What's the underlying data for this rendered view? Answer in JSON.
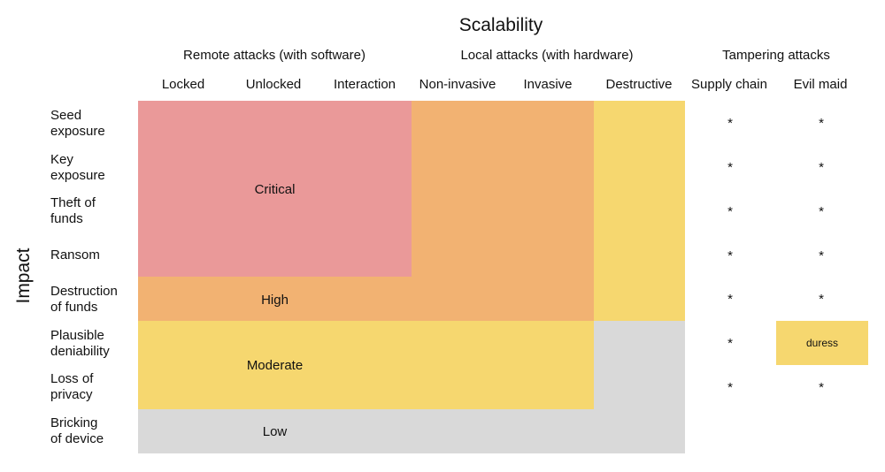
{
  "title": "Scalability",
  "y_label": "Impact",
  "groups": [
    "Remote attacks (with software)",
    "Local attacks (with hardware)",
    "Tampering attacks"
  ],
  "columns": [
    "Locked",
    "Unlocked",
    "Interaction",
    "Non-invasive",
    "Invasive",
    "Destructive",
    "Supply chain",
    "Evil maid"
  ],
  "rows": [
    "Seed exposure",
    "Key exposure",
    "Theft of funds",
    "Ransom",
    "Destruction of funds",
    "Plausible deniability",
    "Loss of privacy",
    "Bricking of device"
  ],
  "row_lines": [
    [
      "Seed",
      "exposure"
    ],
    [
      "Key",
      "exposure"
    ],
    [
      "Theft of",
      "funds"
    ],
    [
      "Ransom"
    ],
    [
      "Destruction",
      "of funds"
    ],
    [
      "Plausible",
      "deniability"
    ],
    [
      "Loss of",
      "privacy"
    ],
    [
      "Bricking",
      "of device"
    ]
  ],
  "levels": {
    "critical": {
      "label": "Critical",
      "color": "#ea9999"
    },
    "high": {
      "label": "High",
      "color": "#f2b272"
    },
    "moderate": {
      "label": "Moderate",
      "color": "#f6d76f"
    },
    "low": {
      "label": "Low",
      "color": "#d9d9d9"
    }
  },
  "tampering": {
    "marker": "*",
    "supply_chain": [
      "*",
      "*",
      "*",
      "*",
      "*",
      "*",
      "*",
      ""
    ],
    "evil_maid": [
      "*",
      "*",
      "*",
      "*",
      "*",
      "duress",
      "*",
      ""
    ]
  },
  "duress_color": "#f6d76f"
}
